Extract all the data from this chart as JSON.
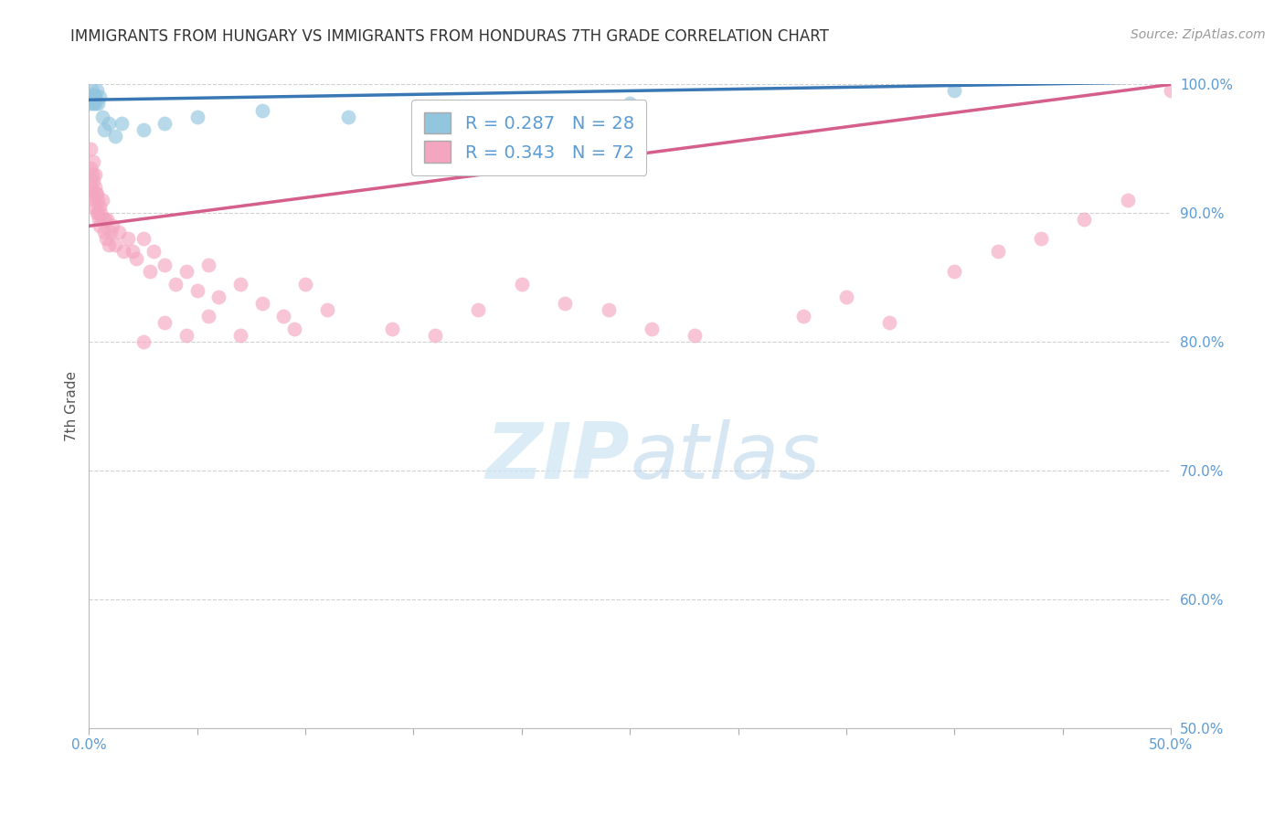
{
  "title": "IMMIGRANTS FROM HUNGARY VS IMMIGRANTS FROM HONDURAS 7TH GRADE CORRELATION CHART",
  "source": "Source: ZipAtlas.com",
  "ylabel": "7th Grade",
  "xlim": [
    0.0,
    50.0
  ],
  "ylim": [
    50.0,
    100.0
  ],
  "yticks": [
    50.0,
    60.0,
    70.0,
    80.0,
    90.0,
    100.0
  ],
  "hungary_R": 0.287,
  "hungary_N": 28,
  "honduras_R": 0.343,
  "honduras_N": 72,
  "hungary_color": "#92c5de",
  "honduras_color": "#f4a6c0",
  "hungary_line_color": "#3a78b5",
  "honduras_line_color": "#d45f8a",
  "background_color": "#ffffff",
  "grid_color": "#cccccc",
  "title_color": "#333333",
  "axis_label_color": "#555555",
  "tick_label_color": "#5b9bd5",
  "watermark_color": "#cce5f5",
  "hungary_x": [
    0.05,
    0.08,
    0.1,
    0.12,
    0.14,
    0.16,
    0.18,
    0.2,
    0.22,
    0.25,
    0.28,
    0.3,
    0.35,
    0.4,
    0.5,
    0.6,
    0.7,
    0.9,
    1.2,
    1.5,
    2.5,
    3.5,
    5.0,
    8.0,
    12.0,
    18.0,
    25.0,
    40.0
  ],
  "hungary_y": [
    98.5,
    99.0,
    99.2,
    98.8,
    99.5,
    99.0,
    98.5,
    99.0,
    98.8,
    99.2,
    98.5,
    99.0,
    99.5,
    98.5,
    99.0,
    97.5,
    96.5,
    97.0,
    96.0,
    97.0,
    96.5,
    97.0,
    97.5,
    98.0,
    97.5,
    97.5,
    98.5,
    99.5
  ],
  "honduras_x": [
    0.05,
    0.08,
    0.1,
    0.12,
    0.15,
    0.18,
    0.2,
    0.22,
    0.25,
    0.28,
    0.3,
    0.32,
    0.35,
    0.38,
    0.4,
    0.42,
    0.45,
    0.48,
    0.5,
    0.55,
    0.6,
    0.65,
    0.7,
    0.75,
    0.8,
    0.85,
    0.9,
    1.0,
    1.1,
    1.2,
    1.4,
    1.6,
    1.8,
    2.0,
    2.2,
    2.5,
    2.8,
    3.0,
    3.5,
    4.0,
    4.5,
    5.0,
    5.5,
    6.0,
    7.0,
    8.0,
    9.0,
    10.0,
    11.0,
    14.0,
    16.0,
    18.0,
    20.0,
    22.0,
    24.0,
    26.0,
    28.0,
    33.0,
    35.0,
    37.0,
    40.0,
    42.0,
    44.0,
    46.0,
    48.0,
    50.0,
    2.5,
    3.5,
    4.5,
    5.5,
    7.0,
    9.5
  ],
  "honduras_y": [
    95.0,
    93.5,
    92.0,
    91.5,
    93.0,
    94.0,
    92.5,
    91.0,
    90.5,
    92.0,
    93.0,
    91.5,
    90.0,
    91.5,
    90.0,
    91.0,
    89.5,
    90.5,
    89.0,
    90.0,
    91.0,
    89.5,
    88.5,
    89.5,
    88.0,
    89.5,
    87.5,
    88.5,
    89.0,
    87.5,
    88.5,
    87.0,
    88.0,
    87.0,
    86.5,
    88.0,
    85.5,
    87.0,
    86.0,
    84.5,
    85.5,
    84.0,
    86.0,
    83.5,
    84.5,
    83.0,
    82.0,
    84.5,
    82.5,
    81.0,
    80.5,
    82.5,
    84.5,
    83.0,
    82.5,
    81.0,
    80.5,
    82.0,
    83.5,
    81.5,
    85.5,
    87.0,
    88.0,
    89.5,
    91.0,
    99.5,
    80.0,
    81.5,
    80.5,
    82.0,
    80.5,
    81.0
  ]
}
